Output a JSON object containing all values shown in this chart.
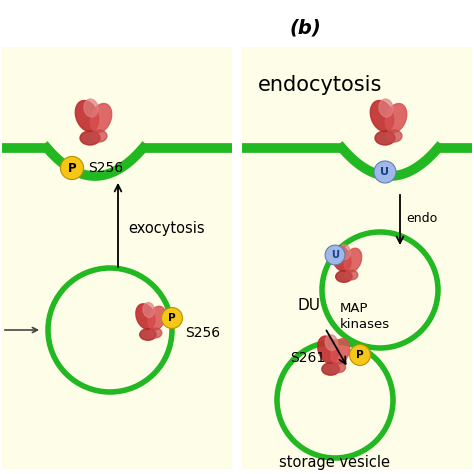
{
  "bg_color": "#fefee8",
  "membrane_color": "#22b822",
  "membrane_lw": 7,
  "vesicle_color": "#22b822",
  "vesicle_lw": 4,
  "P_color": "#f5c518",
  "U_color": "#a0b8e8",
  "text_color": "#111111",
  "title_b": "(b)",
  "endo_title": "endocytosis",
  "exo_label": "exocytosis",
  "endo_label": "endo",
  "DU_label": "DU",
  "MAP_label": "MAP\nkinases",
  "S256_top": "S256",
  "S256_bot": "S256",
  "S261_label": "S261",
  "storage_label": "storage vesicle",
  "fig_width": 4.74,
  "fig_height": 4.74,
  "dpi": 100
}
